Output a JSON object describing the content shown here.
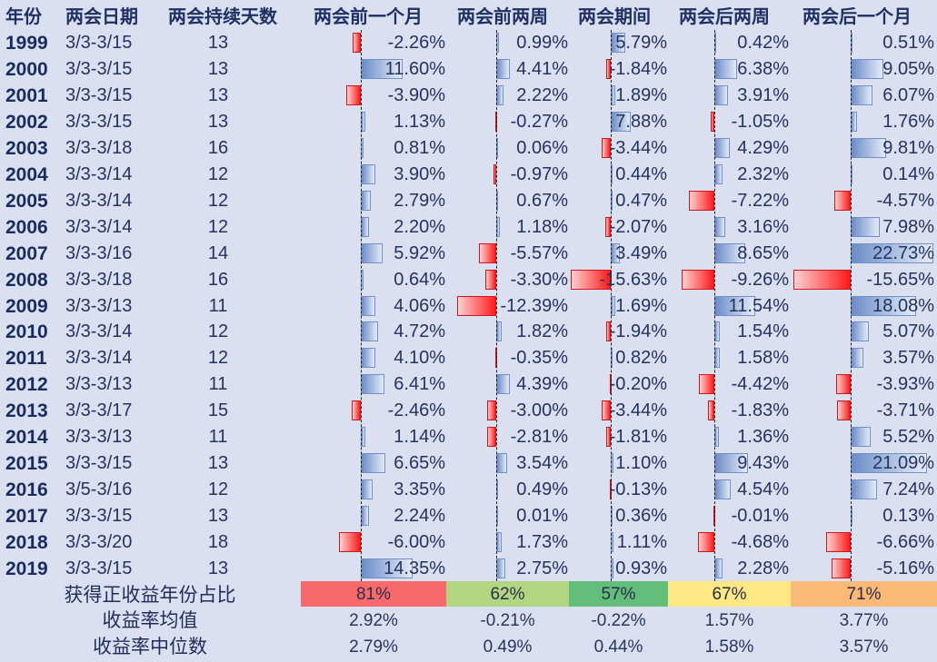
{
  "headers": {
    "year": "年份",
    "date": "两会日期",
    "days": "两会持续天数",
    "before_1m": "两会前一个月",
    "before_2w": "两会前两周",
    "during": "两会期间",
    "after_2w": "两会后两周",
    "after_1m": "两会后一个月"
  },
  "rows": [
    {
      "year": "1999",
      "date": "3/3-3/15",
      "days": "13",
      "before_1m": "-2.26%",
      "before_2w": "0.99%",
      "during": "5.79%",
      "after_2w": "0.42%",
      "after_1m": "0.51%"
    },
    {
      "year": "2000",
      "date": "3/3-3/15",
      "days": "13",
      "before_1m": "11.60%",
      "before_2w": "4.41%",
      "during": "-1.84%",
      "after_2w": "6.38%",
      "after_1m": "9.05%"
    },
    {
      "year": "2001",
      "date": "3/3-3/15",
      "days": "13",
      "before_1m": "-3.90%",
      "before_2w": "2.22%",
      "during": "1.89%",
      "after_2w": "3.91%",
      "after_1m": "6.07%"
    },
    {
      "year": "2002",
      "date": "3/3-3/15",
      "days": "13",
      "before_1m": "1.13%",
      "before_2w": "-0.27%",
      "during": "7.88%",
      "after_2w": "-1.05%",
      "after_1m": "1.76%"
    },
    {
      "year": "2003",
      "date": "3/3-3/18",
      "days": "16",
      "before_1m": "0.81%",
      "before_2w": "0.06%",
      "during": "-3.44%",
      "after_2w": "4.29%",
      "after_1m": "9.81%"
    },
    {
      "year": "2004",
      "date": "3/3-3/14",
      "days": "12",
      "before_1m": "3.90%",
      "before_2w": "-0.97%",
      "during": "0.44%",
      "after_2w": "2.32%",
      "after_1m": "0.14%"
    },
    {
      "year": "2005",
      "date": "3/3-3/14",
      "days": "12",
      "before_1m": "2.79%",
      "before_2w": "0.67%",
      "during": "0.47%",
      "after_2w": "-7.22%",
      "after_1m": "-4.57%"
    },
    {
      "year": "2006",
      "date": "3/3-3/14",
      "days": "12",
      "before_1m": "2.20%",
      "before_2w": "1.18%",
      "during": "-2.07%",
      "after_2w": "3.16%",
      "after_1m": "7.98%"
    },
    {
      "year": "2007",
      "date": "3/3-3/16",
      "days": "14",
      "before_1m": "5.92%",
      "before_2w": "-5.57%",
      "during": "3.49%",
      "after_2w": "8.65%",
      "after_1m": "22.73%"
    },
    {
      "year": "2008",
      "date": "3/3-3/18",
      "days": "16",
      "before_1m": "0.64%",
      "before_2w": "-3.30%",
      "during": "-15.63%",
      "after_2w": "-9.26%",
      "after_1m": "-15.65%"
    },
    {
      "year": "2009",
      "date": "3/3-3/13",
      "days": "11",
      "before_1m": "4.06%",
      "before_2w": "-12.39%",
      "during": "1.69%",
      "after_2w": "11.54%",
      "after_1m": "18.08%"
    },
    {
      "year": "2010",
      "date": "3/3-3/14",
      "days": "12",
      "before_1m": "4.72%",
      "before_2w": "1.82%",
      "during": "-1.94%",
      "after_2w": "1.54%",
      "after_1m": "5.07%"
    },
    {
      "year": "2011",
      "date": "3/3-3/14",
      "days": "12",
      "before_1m": "4.10%",
      "before_2w": "-0.35%",
      "during": "0.82%",
      "after_2w": "1.58%",
      "after_1m": "3.57%"
    },
    {
      "year": "2012",
      "date": "3/3-3/13",
      "days": "11",
      "before_1m": "6.41%",
      "before_2w": "4.39%",
      "during": "-0.20%",
      "after_2w": "-4.42%",
      "after_1m": "-3.93%"
    },
    {
      "year": "2013",
      "date": "3/3-3/17",
      "days": "15",
      "before_1m": "-2.46%",
      "before_2w": "-3.00%",
      "during": "-3.44%",
      "after_2w": "-1.83%",
      "after_1m": "-3.71%"
    },
    {
      "year": "2014",
      "date": "3/3-3/13",
      "days": "11",
      "before_1m": "1.14%",
      "before_2w": "-2.81%",
      "during": "-1.81%",
      "after_2w": "1.36%",
      "after_1m": "5.52%"
    },
    {
      "year": "2015",
      "date": "3/3-3/15",
      "days": "13",
      "before_1m": "6.65%",
      "before_2w": "3.54%",
      "during": "1.10%",
      "after_2w": "9.43%",
      "after_1m": "21.09%"
    },
    {
      "year": "2016",
      "date": "3/5-3/16",
      "days": "12",
      "before_1m": "3.35%",
      "before_2w": "0.49%",
      "during": "-0.13%",
      "after_2w": "4.54%",
      "after_1m": "7.24%"
    },
    {
      "year": "2017",
      "date": "3/3-3/15",
      "days": "13",
      "before_1m": "2.24%",
      "before_2w": "0.01%",
      "during": "0.36%",
      "after_2w": "-0.01%",
      "after_1m": "0.13%"
    },
    {
      "year": "2018",
      "date": "3/3-3/20",
      "days": "18",
      "before_1m": "-6.00%",
      "before_2w": "1.73%",
      "during": "1.11%",
      "after_2w": "-4.68%",
      "after_1m": "-6.66%"
    },
    {
      "year": "2019",
      "date": "3/3-3/15",
      "days": "13",
      "before_1m": "14.35%",
      "before_2w": "2.75%",
      "during": "0.93%",
      "after_2w": "2.28%",
      "after_1m": "-5.16%"
    }
  ],
  "summary": {
    "positive_ratio": {
      "label": "获得正收益年份占比",
      "values": {
        "before_1m": "81%",
        "before_2w": "62%",
        "during": "57%",
        "after_2w": "67%",
        "after_1m": "71%"
      },
      "colors": {
        "before_1m": "#f8696b",
        "before_2w": "#b1d580",
        "during": "#63be7b",
        "after_2w": "#ffe884",
        "after_1m": "#fbb978"
      }
    },
    "mean": {
      "label": "收益率均值",
      "values": {
        "before_1m": "2.92%",
        "before_2w": "-0.21%",
        "during": "-0.22%",
        "after_2w": "1.57%",
        "after_1m": "3.77%"
      }
    },
    "median": {
      "label": "收益率中位数",
      "values": {
        "before_1m": "2.79%",
        "before_2w": "0.49%",
        "during": "0.44%",
        "after_2w": "1.58%",
        "after_1m": "3.57%"
      }
    }
  },
  "colors": {
    "background": "#dae0f0",
    "positive_bar": "#6b8cc7",
    "negative_bar": "#ff1a1a",
    "text": "#1f2d5a"
  }
}
